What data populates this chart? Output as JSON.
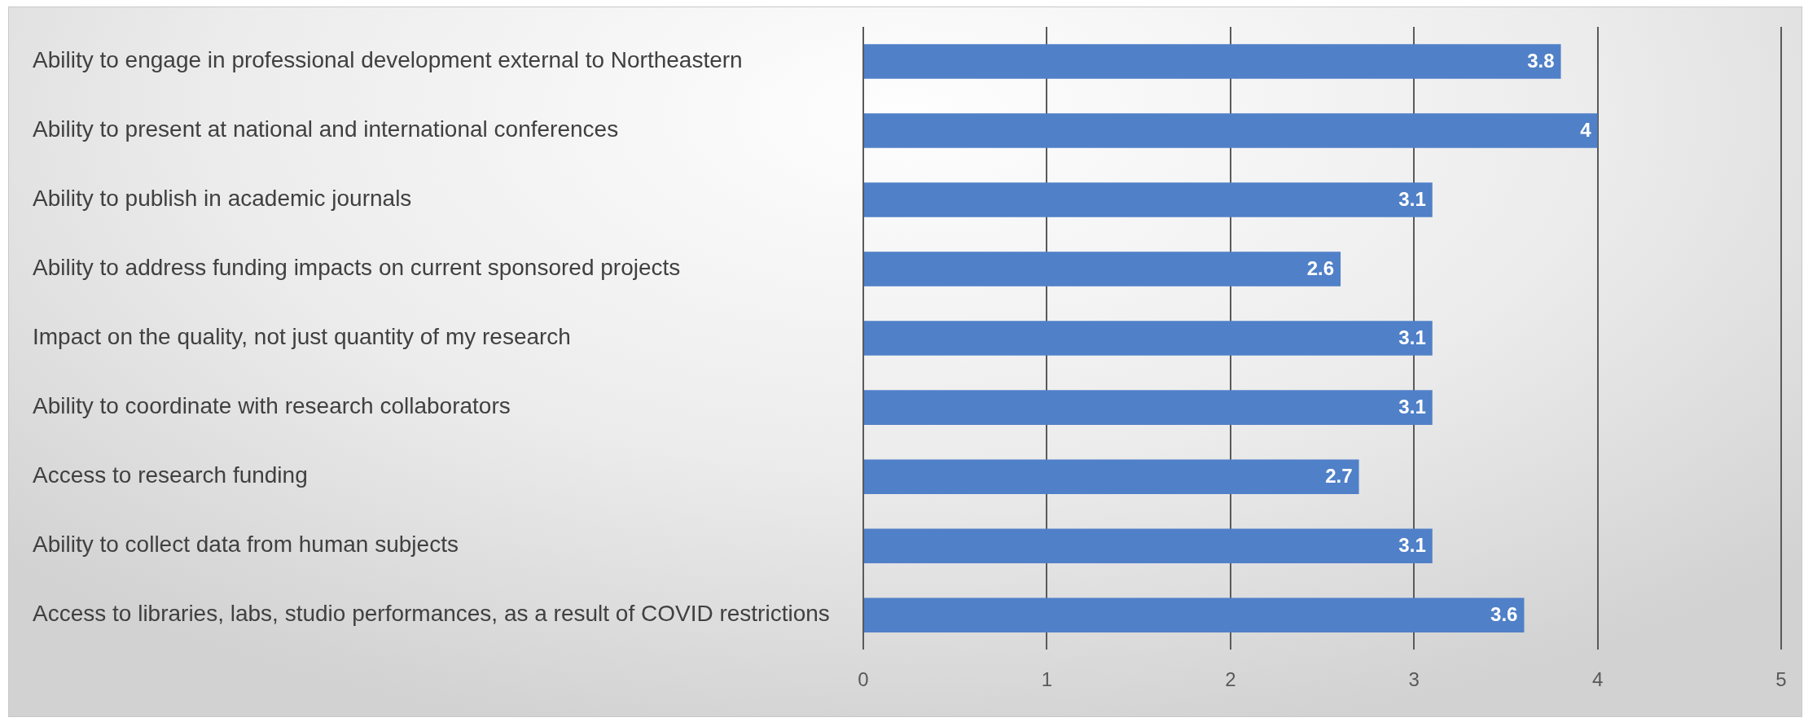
{
  "chart_data": {
    "type": "bar",
    "orientation": "horizontal",
    "categories": [
      "Ability to engage in professional development external to Northeastern",
      "Ability to present at national and international conferences",
      "Ability to publish in academic journals",
      "Ability to address funding impacts on current sponsored projects",
      "Impact on the quality, not just quantity of my research",
      "Ability to coordinate with research collaborators",
      "Access to research funding",
      "Ability to collect data from human subjects",
      "Access to libraries, labs, studio performances, as a result of COVID restrictions"
    ],
    "values": [
      3.8,
      4,
      3.1,
      2.6,
      3.1,
      3.1,
      2.7,
      3.1,
      3.6
    ],
    "color": "#5080c8",
    "xlim": [
      0,
      5
    ],
    "xticks": [
      0,
      1,
      2,
      3,
      4,
      5
    ],
    "grid": "x",
    "data_labels": true
  }
}
